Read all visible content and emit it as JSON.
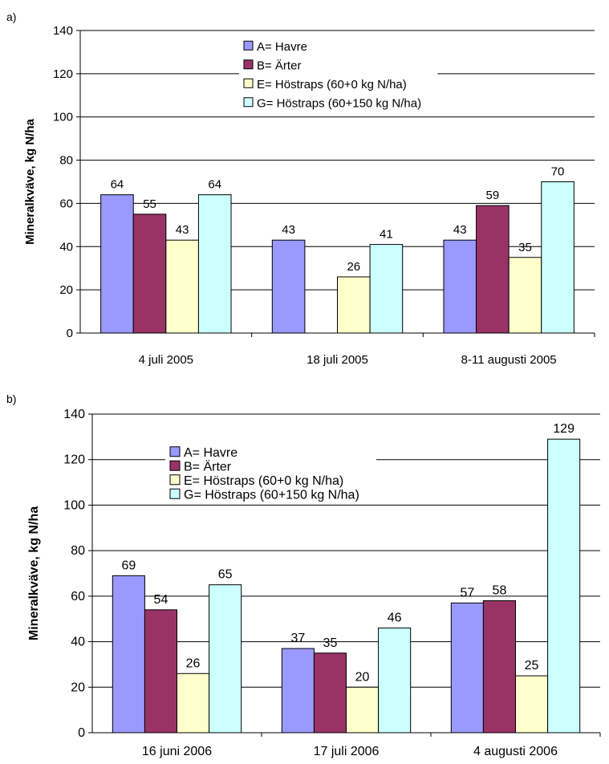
{
  "chart_data": [
    {
      "panel_label": "a)",
      "type": "bar",
      "ylabel": "Mineralkväve, kg N/ha",
      "ylim": [
        0,
        140
      ],
      "yticks": [
        0,
        20,
        40,
        60,
        80,
        100,
        120,
        140
      ],
      "grid": true,
      "legend_position": "top-center",
      "categories": [
        "4 juli 2005",
        "18 juli 2005",
        "8-11 augusti 2005"
      ],
      "series": [
        {
          "name": "A= Havre",
          "color": "#9999ff",
          "values": [
            64,
            43,
            43
          ]
        },
        {
          "name": "B= Ärter",
          "color": "#993366",
          "values": [
            55,
            null,
            59
          ]
        },
        {
          "name": "E= Höstraps (60+0 kg N/ha)",
          "color": "#ffffcc",
          "values": [
            43,
            26,
            35
          ]
        },
        {
          "name": "G= Höstraps (60+150 kg N/ha)",
          "color": "#ccffff",
          "values": [
            64,
            41,
            70
          ]
        }
      ]
    },
    {
      "panel_label": "b)",
      "type": "bar",
      "ylabel": "Mineralkväve, kg N/ha",
      "ylim": [
        0,
        140
      ],
      "yticks": [
        0,
        20,
        40,
        60,
        80,
        100,
        120,
        140
      ],
      "grid": true,
      "legend_position": "top-left",
      "categories": [
        "16 juni 2006",
        "17 juli 2006",
        "4 augusti 2006"
      ],
      "series": [
        {
          "name": "A= Havre",
          "color": "#9999ff",
          "values": [
            69,
            37,
            57
          ]
        },
        {
          "name": "B= Ärter",
          "color": "#993366",
          "values": [
            54,
            35,
            58
          ]
        },
        {
          "name": "E= Höstraps (60+0 kg N/ha)",
          "color": "#ffffcc",
          "values": [
            26,
            20,
            25
          ]
        },
        {
          "name": "G= Höstraps (60+150 kg N/ha)",
          "color": "#ccffff",
          "values": [
            65,
            46,
            129
          ]
        }
      ]
    }
  ]
}
